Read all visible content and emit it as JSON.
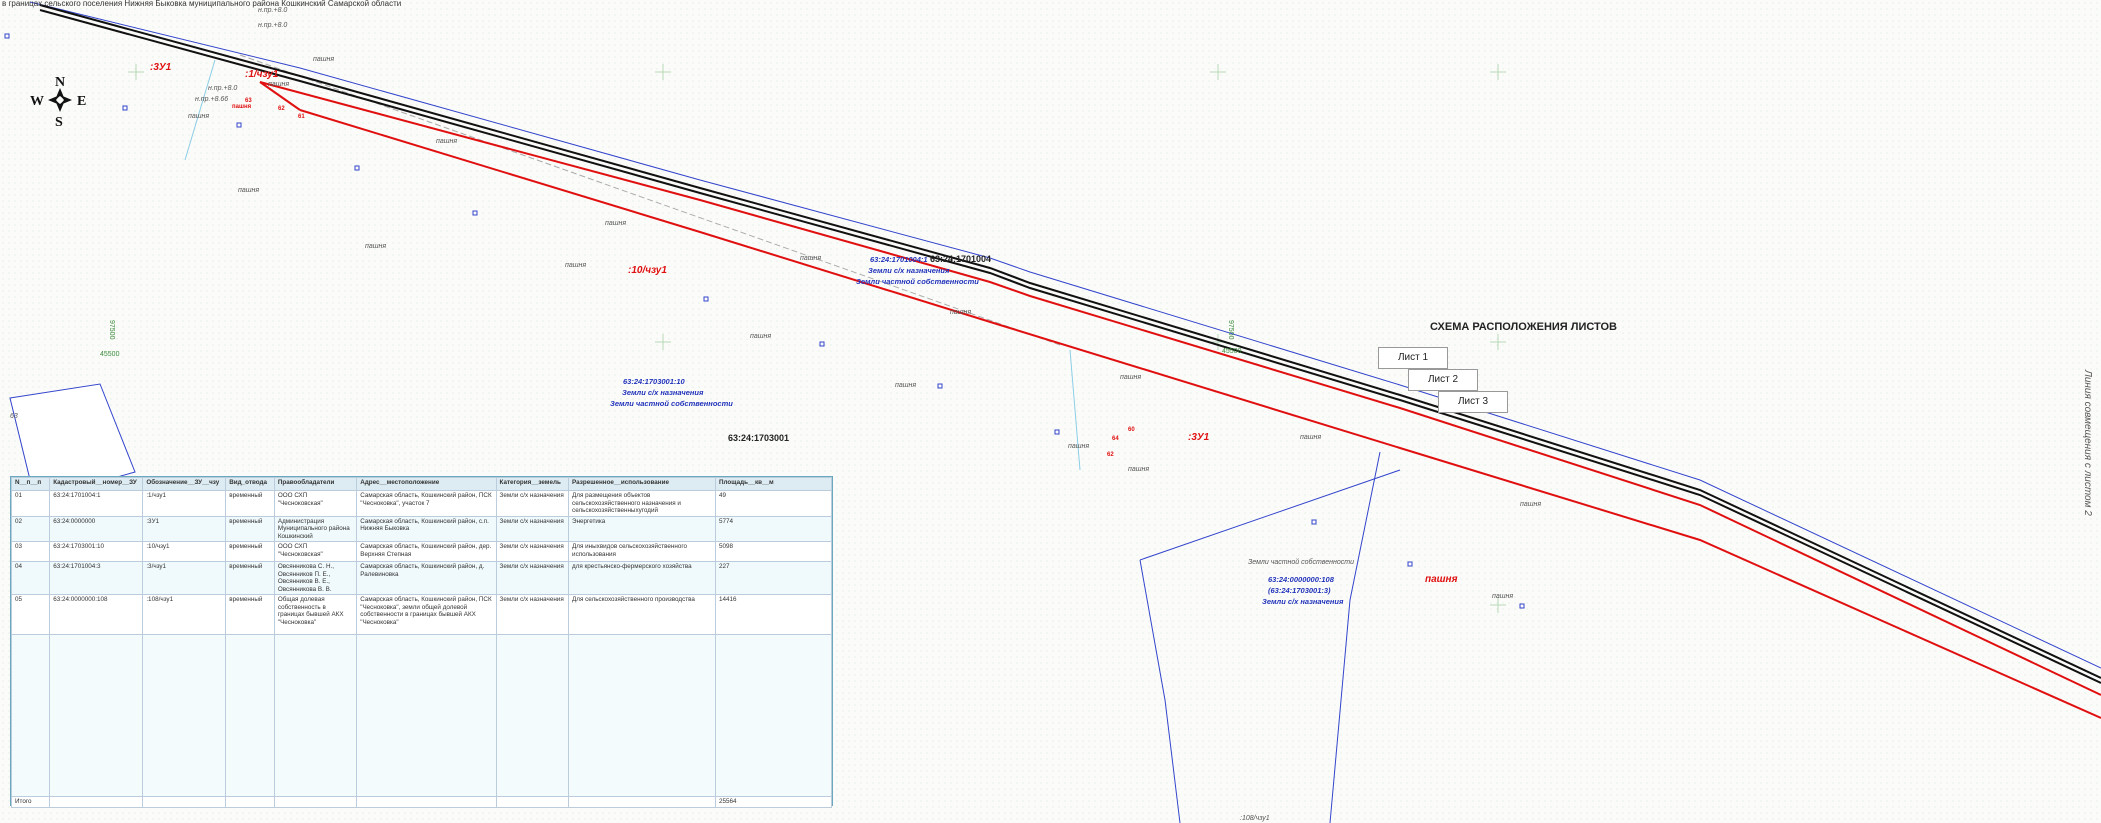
{
  "header": {
    "title": "в границах сельского поселения Нижняя Быковка муниципального района Кошкинский Самарской области"
  },
  "compass": {
    "n": "N",
    "s": "S",
    "w": "W",
    "e": "E"
  },
  "map_labels": [
    "н.пр.+8.0",
    "н.пр.+8.0",
    "пашня",
    ":3У1",
    ":1/чзу1",
    "н.пр.+8.0",
    "н.пр.+8.66",
    "пашня",
    "пашня",
    "пашня",
    "пашня",
    "пашня",
    "пашня",
    "63:24:1701004",
    "пашня",
    "пашня",
    ":10/чзу1",
    "63:24:1701004:1",
    "Земли с/х назначения",
    "Земли частной собственности",
    "пашня",
    "пашня",
    "45500",
    "45500",
    "97500",
    "97500",
    "63:24:1703001:10",
    "Земли с/х назначения",
    "Земли частной собственности",
    "пашня",
    "пашня",
    "63:24:1703001",
    ":3У1",
    "пашня",
    "пашня",
    "пашня",
    "пашня",
    "63:24:0000000:108",
    "(63:24:1703001:3)",
    "Земли с/х назначения",
    "Земли частной собственности",
    "пашня",
    ":108/чзу1",
    "пашня",
    "пашня",
    "63",
    "62",
    "61",
    "64",
    "60",
    "62",
    "63"
  ],
  "sheets": {
    "title": "СХЕМА РАСПОЛОЖЕНИЯ ЛИСТОВ",
    "items": [
      "Лист 1",
      "Лист 2",
      "Лист 3"
    ]
  },
  "side_note": "Линия совмещения с листом 2",
  "table": {
    "headers": [
      "N__п__п",
      "Кадастровый__номер__ЗУ",
      "Обозначение__ЗУ__чзу",
      "Вид_отвода",
      "Правообладатели",
      "Адрес__местоположение",
      "Категория__земель",
      "Разрешенное__использование",
      "Площадь__кв__м"
    ],
    "rows": [
      [
        "01",
        "63:24:1701004:1",
        ":1/чзу1",
        "временный",
        "ООО СХП \"Чесноковская\"",
        "Самарская область, Кошкинский район, ПСК \"Чесноковка\", участок 7",
        "Земли с/х назначения",
        "Для размещения объектов сельскохозяйственного назначения и сельскохозяйственныхугодий",
        "49"
      ],
      [
        "02",
        "63:24:0000000",
        ":3У1",
        "временный",
        "Администрация Муниципального района Кошкинский",
        "Самарская область, Кошкинский район, с.п. Нижняя Быковка",
        "Земли с/х назначения",
        "Энергетика",
        "5774"
      ],
      [
        "03",
        "63:24:1703001:10",
        ":10/чзу1",
        "временный",
        "ООО СХП \"Чесноковская\"",
        "Самарская область, Кошкинский район, дер. Верхняя Степная",
        "Земли с/х назначения",
        "Для иныхвидов сельскохозяйственного использования",
        "5098"
      ],
      [
        "04",
        "63:24:1701004:3",
        ":3/чзу1",
        "временный",
        "Овсянникова С. Н., Овсянников П. Е., Овсянников В. Е., Овсянникова В. В.",
        "Самарская область, Кошкинский район, д. Ралевиновка",
        "Земли с/х назначения",
        "для крестьянско-фермерского хозяйства",
        "227"
      ],
      [
        "05",
        "63:24:0000000:108",
        ":108/чзу1",
        "временный",
        "Общая долевая собственность в границах бывшей АКХ \"Чесноковка\"",
        "Самарская область, Кошкинский район, ПСК \"Чесноковка\", земли общей долевой собственности в границах бывшей АКХ \"Чесноковка\"",
        "Земли с/х назначения",
        "Для сельскохозяйственного производства",
        "14416"
      ]
    ],
    "total": {
      "label": "Итого",
      "value": "25564"
    }
  }
}
